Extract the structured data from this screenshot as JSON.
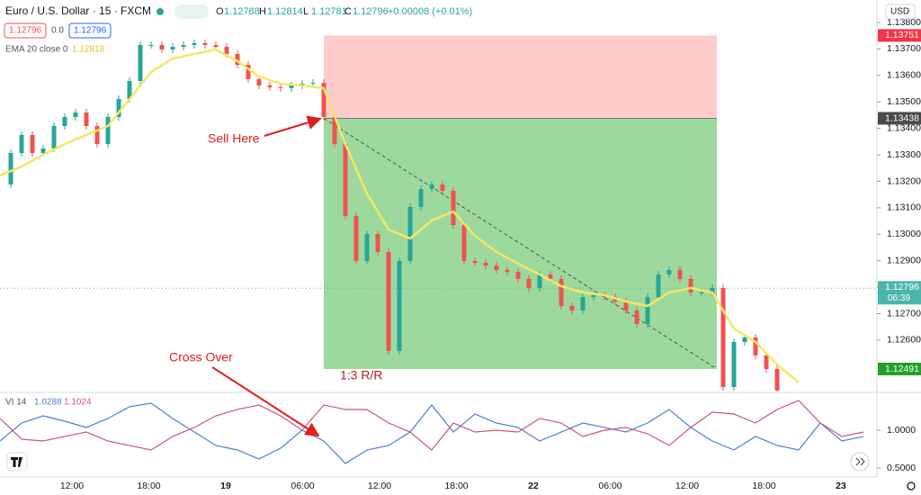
{
  "header": {
    "symbol": "Euro / U.S. Dollar · 15 · FXCM",
    "ohlc": [
      {
        "key": "O",
        "value": "1.12788"
      },
      {
        "key": "H",
        "value": "1.12814"
      },
      {
        "key": "L",
        "value": "1.12781"
      },
      {
        "key": "C",
        "value": "1.12796"
      }
    ],
    "change": "+0.00008 (+0.01%)",
    "sell_box": "1.12796",
    "spread": "0.0",
    "buy_box": "1.12796"
  },
  "ema": {
    "label": "EMA 20 close 0",
    "last": "1.12818",
    "color": "#f5e663",
    "values": [
      1.13222,
      1.13256,
      1.133,
      1.13341,
      1.13375,
      1.13409,
      1.13511,
      1.13613,
      1.13664,
      1.13681,
      1.13698,
      1.13654,
      1.13596,
      1.13569,
      1.13562,
      1.13552,
      1.13341,
      1.13154,
      1.13018,
      1.12984,
      1.13052,
      1.13086,
      1.12994,
      1.12933,
      1.12889,
      1.12848,
      1.12804,
      1.1278,
      1.1277,
      1.12746,
      1.12729,
      1.1278,
      1.12797,
      1.1278,
      1.12644,
      1.12593,
      1.12508,
      1.1244
    ]
  },
  "price": {
    "currency": "USD",
    "ylim": [
      1.12406,
      1.13885
    ],
    "ticks": [
      {
        "value": 1.138,
        "label": "1.13800"
      },
      {
        "value": 1.137,
        "label": "1.13700"
      },
      {
        "value": 1.136,
        "label": "1.13600"
      },
      {
        "value": 1.135,
        "label": "1.13500"
      },
      {
        "value": 1.134,
        "label": "1.13400"
      },
      {
        "value": 1.133,
        "label": "1.13300"
      },
      {
        "value": 1.132,
        "label": "1.13200"
      },
      {
        "value": 1.131,
        "label": "1.13100"
      },
      {
        "value": 1.13,
        "label": "1.13000"
      },
      {
        "value": 1.129,
        "label": "1.12900"
      },
      {
        "value": 1.128,
        "label": "1.12800"
      },
      {
        "value": 1.127,
        "label": "1.12700"
      },
      {
        "value": 1.126,
        "label": "1.12600"
      }
    ],
    "closes": [
      1.13188,
      1.13307,
      1.13375,
      1.13307,
      1.13324,
      1.13409,
      1.13443,
      1.1346,
      1.13409,
      1.13341,
      1.13443,
      1.13511,
      1.13579,
      1.13715,
      1.13715,
      1.13698,
      1.13708,
      1.13715,
      1.13722,
      1.13715,
      1.13708,
      1.13681,
      1.1364,
      1.13586,
      1.13562,
      1.13555,
      1.13552,
      1.13562,
      1.13569,
      1.13572,
      1.13443,
      1.13341,
      1.13069,
      1.12899,
      1.13001,
      1.12933,
      1.12559,
      1.12899,
      1.13103,
      1.13171,
      1.13188,
      1.13164,
      1.13035,
      1.12899,
      1.12892,
      1.12882,
      1.12865,
      1.12858,
      1.12831,
      1.12797,
      1.12848,
      1.12831,
      1.12729,
      1.12712,
      1.12763,
      1.1277,
      1.12763,
      1.12746,
      1.12712,
      1.12661,
      1.12763,
      1.12848,
      1.12865,
      1.12831,
      1.1278,
      1.1278,
      1.12797,
      1.12423,
      1.12593,
      1.1261,
      1.12542,
      1.12491,
      1.1241
    ],
    "up_color": "#26a69a",
    "down_color": "#ef5350",
    "stop": {
      "value": 1.13751,
      "label": "1.13751"
    },
    "entry": {
      "value": 1.13438,
      "label": "1.13438"
    },
    "target": {
      "value": 1.12491,
      "label": "1.12491"
    },
    "last": {
      "value": 1.12796,
      "label": "1.12796"
    },
    "countdown": "06:39"
  },
  "vi": {
    "label": "VI 14",
    "plus_last": "1.0288",
    "minus_last": "1.1024",
    "ylim": [
      0.381,
      1.476
    ],
    "ticks": [
      {
        "value": 1,
        "label": "1.0000"
      },
      {
        "value": 0.5,
        "label": "0.5000"
      }
    ],
    "plus": {
      "color": "#4a7fd4",
      "values": [
        0.857,
        1.095,
        1.19,
        1.119,
        1.036,
        1.155,
        1.31,
        1.357,
        1.155,
        0.976,
        0.798,
        0.738,
        0.619,
        0.762,
        1.0,
        0.857,
        0.56,
        0.738,
        0.798,
        0.976,
        1.333,
        0.976,
        1.214,
        1.095,
        1.036,
        0.857,
        0.976,
        1.095,
        1.036,
        0.976,
        1.095,
        1.274,
        1.036,
        0.857,
        0.738,
        0.917,
        0.798,
        0.738,
        1.095,
        0.857,
        0.917
      ]
    },
    "minus": {
      "color": "#c9587a",
      "values": [
        1.155,
        0.881,
        0.857,
        0.917,
        0.976,
        0.857,
        0.798,
        0.738,
        0.917,
        1.036,
        1.19,
        1.274,
        1.333,
        1.19,
        1.0,
        1.333,
        1.274,
        1.274,
        1.095,
        0.976,
        0.738,
        1.095,
        0.976,
        1.0,
        0.976,
        1.155,
        1.095,
        0.917,
        1.0,
        1.036,
        0.952,
        0.798,
        1.036,
        1.238,
        1.214,
        1.095,
        1.274,
        1.393,
        1.095,
        0.917,
        0.976
      ]
    }
  },
  "time_axis": [
    "12:00",
    "18:00",
    "19",
    "06:00",
    "12:00",
    "18:00",
    "22",
    "06:00",
    "12:00",
    "18:00",
    "23"
  ],
  "annotations": {
    "sell": "Sell Here",
    "cross": "Cross Over",
    "rr": "1:3 R/R"
  }
}
